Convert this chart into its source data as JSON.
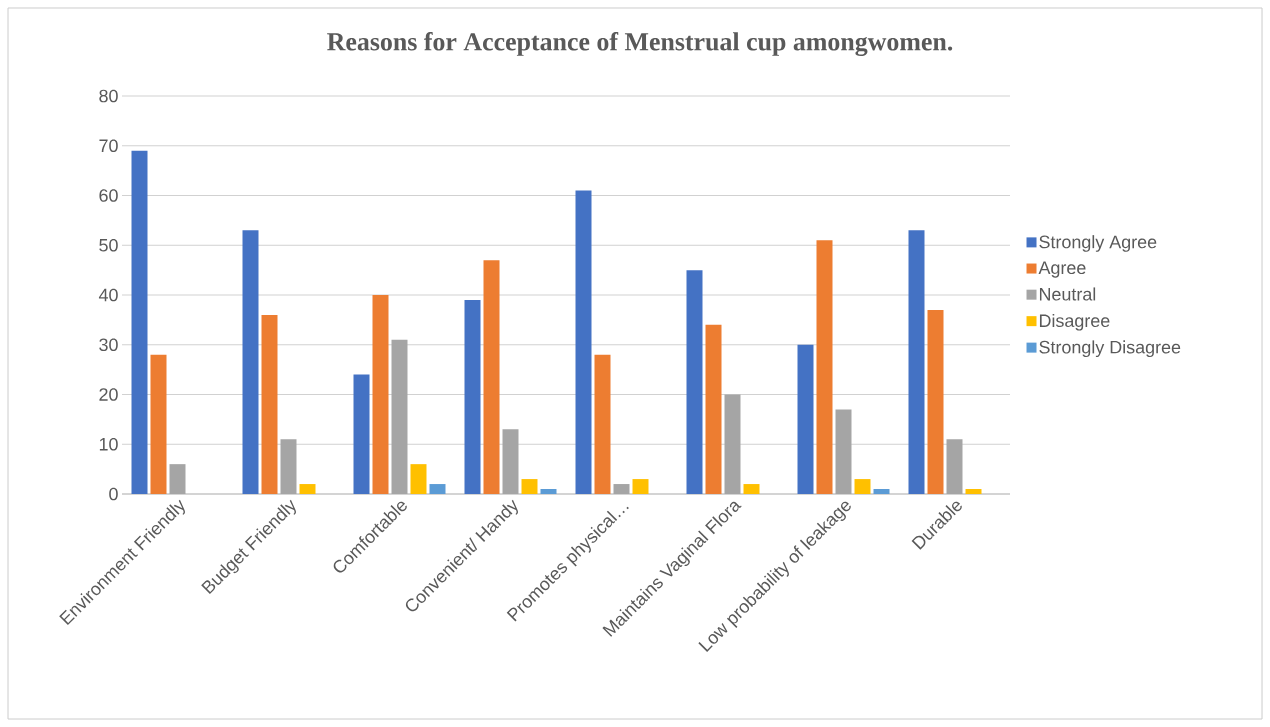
{
  "chart_data": {
    "type": "bar",
    "title": "Reasons for Acceptance of Menstrual cup amongwomen.",
    "categories": [
      "Environment Friendly",
      "Budget Friendly",
      "Comfortable",
      "Convenient/ Handy",
      "Promotes physical…",
      "Maintains Vaginal Flora",
      "Low probability of leakage",
      "Durable"
    ],
    "series": [
      {
        "name": "Strongly Agree",
        "color": "#4472c4",
        "values": [
          69,
          53,
          24,
          39,
          61,
          45,
          30,
          53
        ]
      },
      {
        "name": "Agree",
        "color": "#ed7d31",
        "values": [
          28,
          36,
          40,
          47,
          28,
          34,
          51,
          37
        ]
      },
      {
        "name": "Neutral",
        "color": "#a5a5a5",
        "values": [
          6,
          11,
          31,
          13,
          2,
          20,
          17,
          11
        ]
      },
      {
        "name": "Disagree",
        "color": "#ffc000",
        "values": [
          0,
          2,
          6,
          3,
          3,
          2,
          3,
          1
        ]
      },
      {
        "name": "Strongly Disagree",
        "color": "#5b9bd5",
        "values": [
          0,
          0,
          2,
          1,
          0,
          0,
          1,
          0
        ]
      }
    ],
    "ylim": [
      0,
      80
    ],
    "yticks": [
      0,
      10,
      20,
      30,
      40,
      50,
      60,
      70,
      80
    ],
    "grid": "y",
    "legend": "right"
  }
}
